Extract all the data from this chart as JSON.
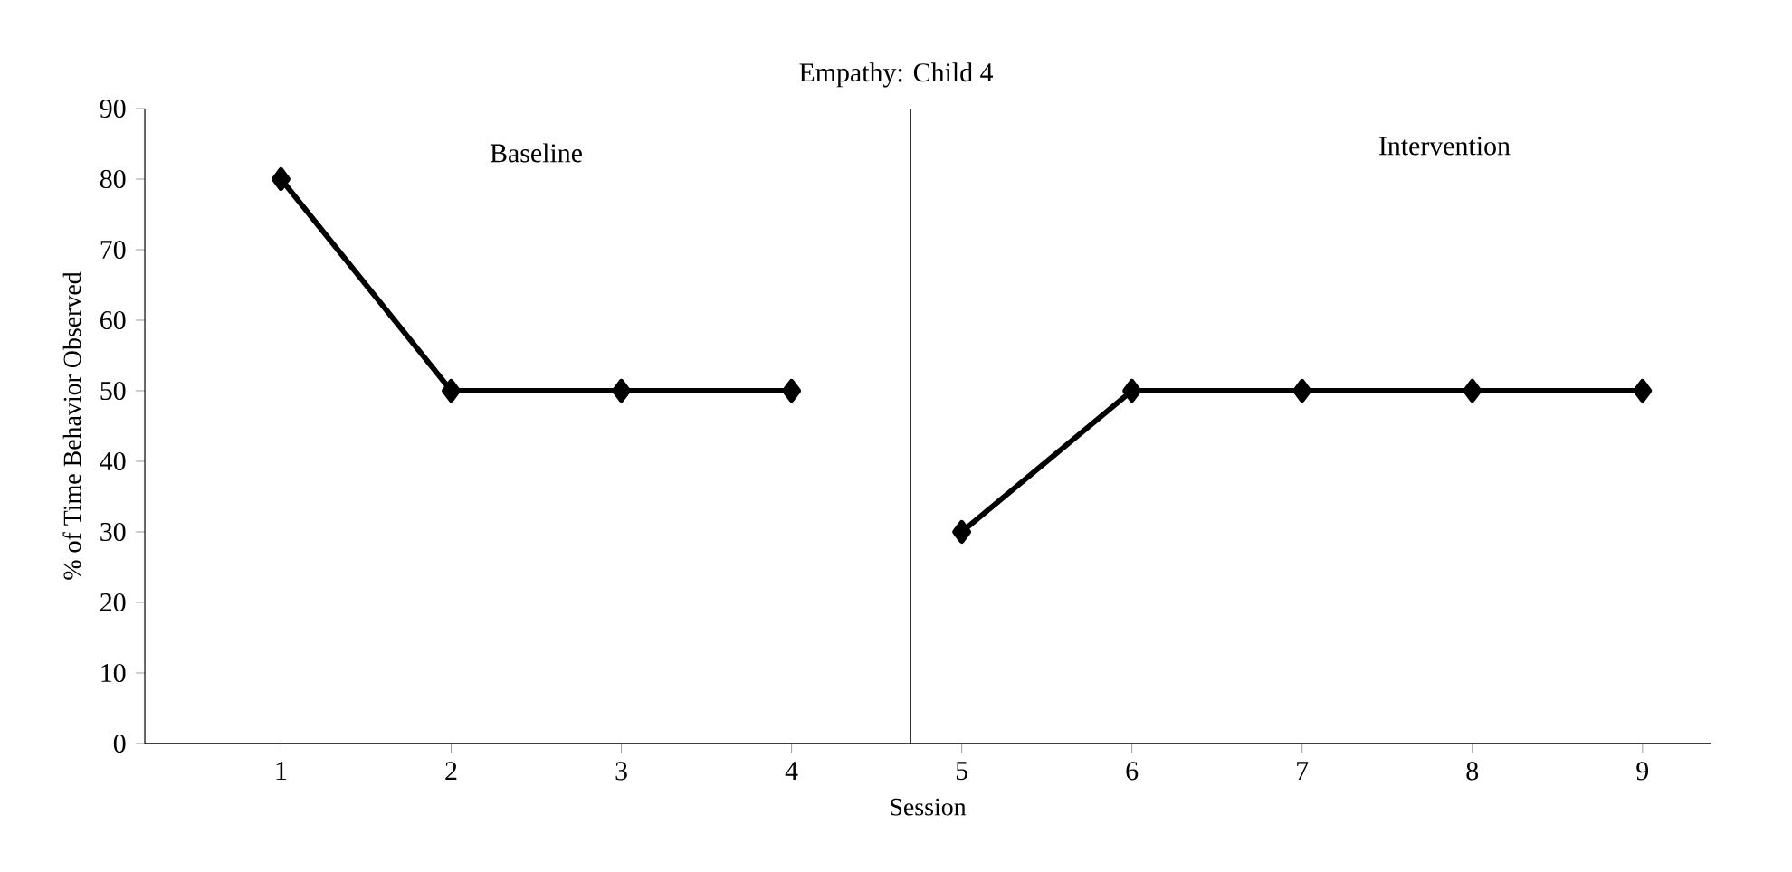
{
  "chart_data": {
    "type": "line",
    "title": "Empathy: Child 4",
    "xlabel": "Session",
    "ylabel": "% of Time Behavior Observed",
    "series": [
      {
        "color": "#000000",
        "x": [
          1,
          2,
          3,
          4
        ],
        "values": [
          80,
          50,
          50,
          50
        ]
      },
      {
        "color": "#000000",
        "x": [
          5,
          6,
          7,
          8,
          9
        ],
        "values": [
          30,
          50,
          50,
          50,
          50
        ]
      }
    ],
    "xlim": [
      0.2,
      9.4
    ],
    "xticks": [
      1,
      2,
      3,
      4,
      5,
      6,
      7,
      8,
      9
    ],
    "ylim": [
      0,
      90
    ],
    "yticks": [
      0,
      10,
      20,
      30,
      40,
      50,
      60,
      70,
      80,
      90
    ],
    "ref_lines": [
      {
        "axis": "x",
        "value": 4.7,
        "color": "#000000"
      }
    ],
    "annotations": [
      "Baseline",
      "Intervention"
    ],
    "marker": "diamond",
    "line_style": "solid",
    "grid": false
  }
}
